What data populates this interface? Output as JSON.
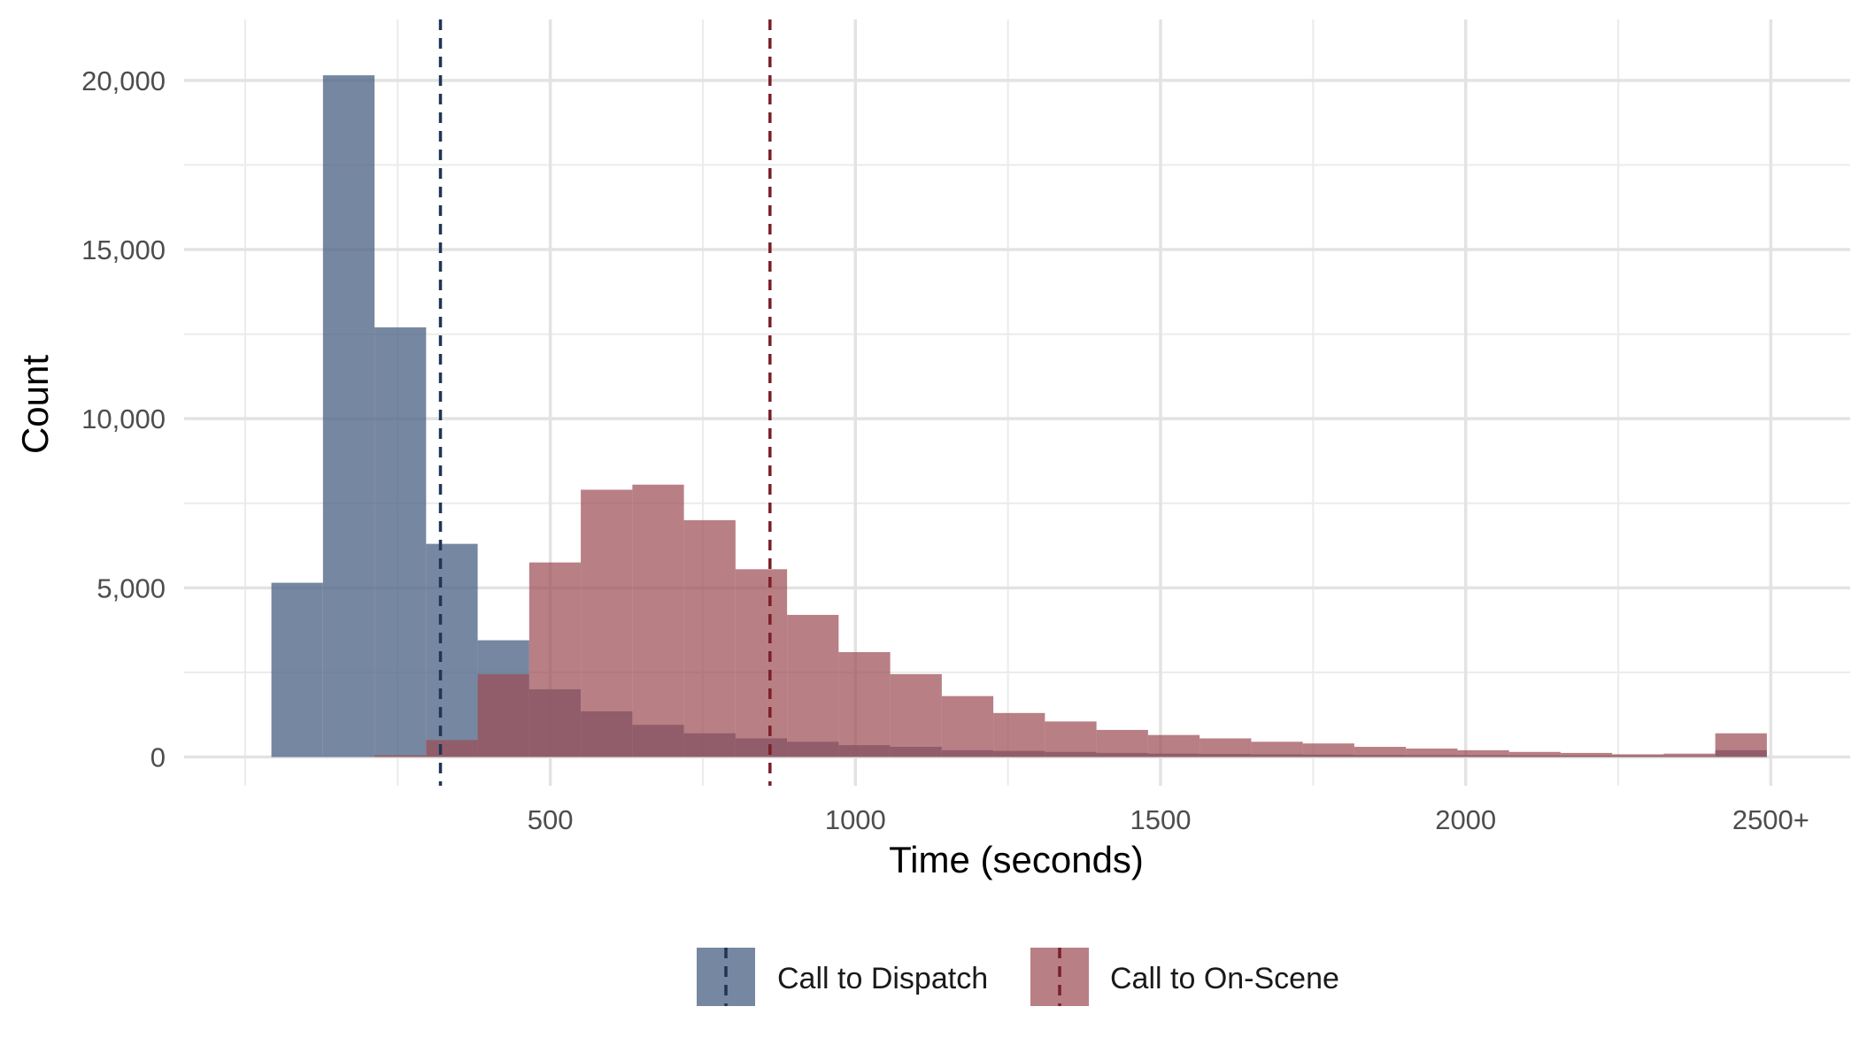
{
  "chart_data": {
    "type": "histogram",
    "xlabel": "Time (seconds)",
    "ylabel": "Count",
    "xlim": [
      -100,
      2630
    ],
    "ylim": [
      -850,
      21800
    ],
    "x_ticks": [
      500,
      1000,
      1500,
      2000,
      2500
    ],
    "x_tick_labels": [
      "500",
      "1000",
      "1500",
      "2000",
      "2500+"
    ],
    "x_minor_gridlines": [
      0,
      250,
      750,
      1250,
      1750,
      2250
    ],
    "y_ticks": [
      0,
      5000,
      10000,
      15000,
      20000
    ],
    "y_tick_labels": [
      "0",
      "5,000",
      "10,000",
      "15,000",
      "20,000"
    ],
    "y_minor_gridlines": [
      2500,
      7500,
      12500,
      17500
    ],
    "grid": true,
    "bin_width": 84.5,
    "legend_position": "bottom",
    "series": [
      {
        "name": "Call to Dispatch",
        "color": "#4f6587",
        "opacity": 0.78,
        "bin_starts": [
          43,
          127.5,
          212,
          296.5,
          381,
          465.5,
          550,
          634.5,
          719,
          803.5,
          888,
          972.5,
          1057,
          1141.5,
          1226,
          1310.5,
          1395,
          1479.5,
          1564,
          1648.5,
          1733,
          1817.5,
          1902,
          1986.5,
          2071,
          2155.5,
          2240,
          2324.5,
          2409
        ],
        "values": [
          5150,
          20150,
          12700,
          6300,
          3450,
          2000,
          1350,
          950,
          700,
          550,
          450,
          350,
          300,
          200,
          180,
          150,
          120,
          100,
          90,
          80,
          70,
          60,
          55,
          50,
          45,
          40,
          35,
          30,
          200
        ],
        "mean_line": 320,
        "mean_line_color": "#1f3556"
      },
      {
        "name": "Call to On-Scene",
        "color": "#9c4d55",
        "opacity": 0.72,
        "bin_starts": [
          212,
          296.5,
          381,
          465.5,
          550,
          634.5,
          719,
          803.5,
          888,
          972.5,
          1057,
          1141.5,
          1226,
          1310.5,
          1395,
          1479.5,
          1564,
          1648.5,
          1733,
          1817.5,
          1902,
          1986.5,
          2071,
          2155.5,
          2240,
          2324.5,
          2409
        ],
        "values": [
          50,
          500,
          2450,
          5750,
          7900,
          8050,
          7000,
          5550,
          4200,
          3100,
          2450,
          1800,
          1300,
          1050,
          800,
          650,
          550,
          450,
          400,
          300,
          250,
          200,
          150,
          120,
          80,
          100,
          700
        ],
        "mean_line": 860,
        "mean_line_color": "#7a1f28"
      }
    ]
  }
}
